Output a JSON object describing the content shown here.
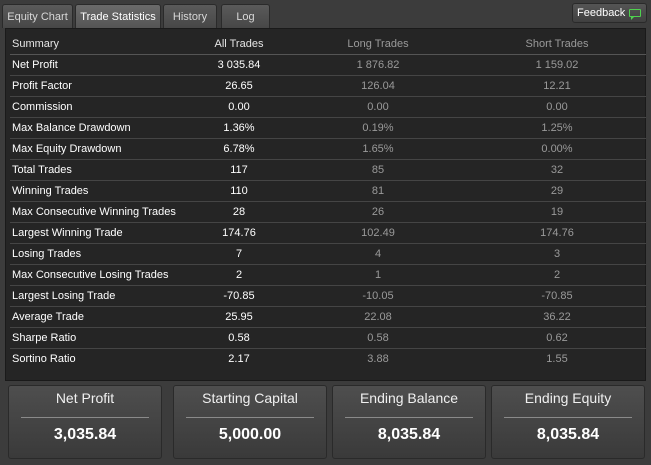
{
  "tabs": {
    "equity_chart": "Equity Chart",
    "trade_statistics": "Trade Statistics",
    "history": "History",
    "log": "Log",
    "active": "Trade Statistics"
  },
  "feedback": {
    "label": "Feedback",
    "icon": "speech-bubble-icon",
    "icon_color": "#4fd14f"
  },
  "table": {
    "columns": [
      "Summary",
      "All Trades",
      "Long Trades",
      "Short Trades"
    ],
    "rows": [
      [
        "Net Profit",
        "3 035.84",
        "1 876.82",
        "1 159.02"
      ],
      [
        "Profit Factor",
        "26.65",
        "126.04",
        "12.21"
      ],
      [
        "Commission",
        "0.00",
        "0.00",
        "0.00"
      ],
      [
        "Max Balance Drawdown",
        "1.36%",
        "0.19%",
        "1.25%"
      ],
      [
        "Max Equity Drawdown",
        "6.78%",
        "1.65%",
        "0.00%"
      ],
      [
        "Total Trades",
        "117",
        "85",
        "32"
      ],
      [
        "Winning Trades",
        "110",
        "81",
        "29"
      ],
      [
        "Max Consecutive Winning Trades",
        "28",
        "26",
        "19"
      ],
      [
        "Largest Winning Trade",
        "174.76",
        "102.49",
        "174.76"
      ],
      [
        "Losing Trades",
        "7",
        "4",
        "3"
      ],
      [
        "Max Consecutive Losing Trades",
        "2",
        "1",
        "2"
      ],
      [
        "Largest Losing Trade",
        "-70.85",
        "-10.05",
        "-70.85"
      ],
      [
        "Average Trade",
        "25.95",
        "22.08",
        "36.22"
      ],
      [
        "Sharpe Ratio",
        "0.58",
        "0.58",
        "0.62"
      ],
      [
        "Sortino Ratio",
        "2.17",
        "3.88",
        "1.55"
      ]
    ]
  },
  "summary_cards": [
    {
      "label": "Net Profit",
      "value": "3,035.84"
    },
    {
      "label": "Starting Capital",
      "value": "5,000.00"
    },
    {
      "label": "Ending Balance",
      "value": "8,035.84"
    },
    {
      "label": "Ending Equity",
      "value": "8,035.84"
    }
  ]
}
